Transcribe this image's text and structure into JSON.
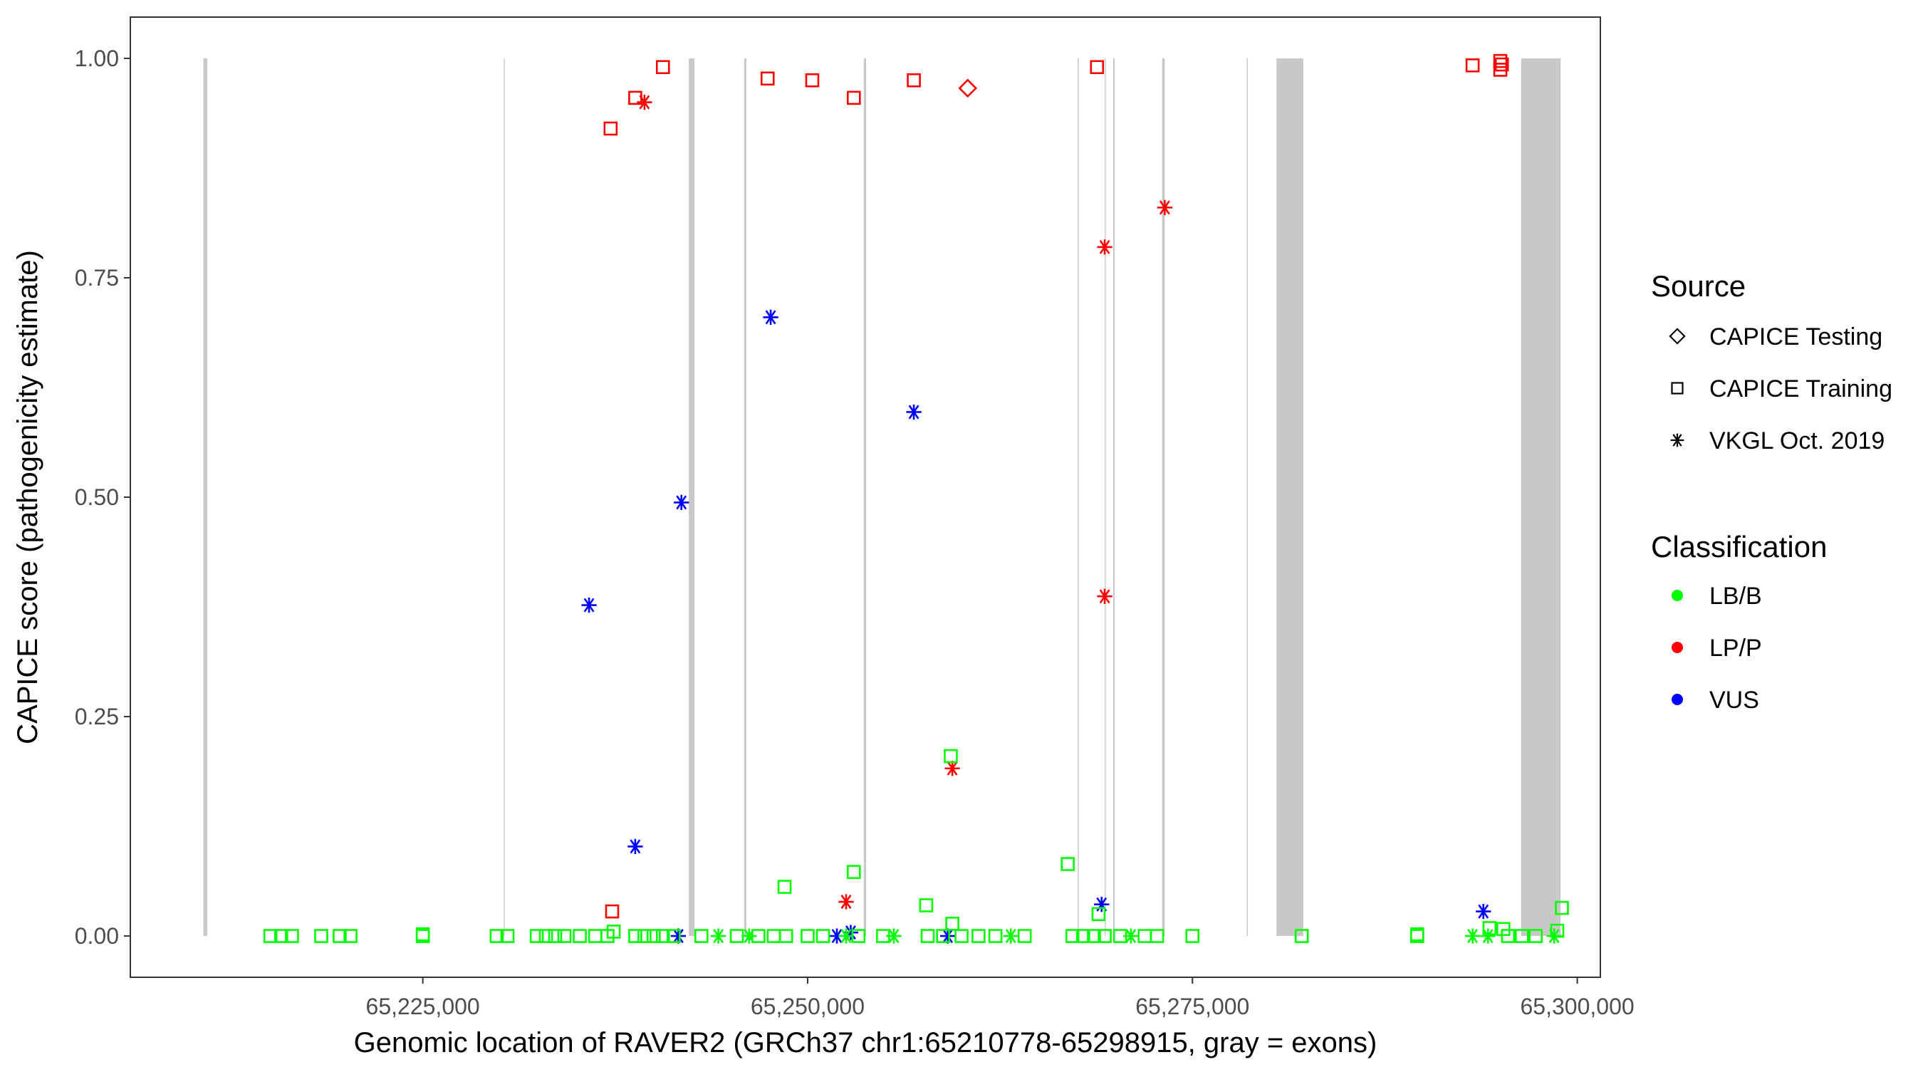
{
  "chart_data": {
    "type": "scatter",
    "xlabel": "Genomic location of RAVER2 (GRCh37 chr1:65210778-65298915, gray = exons)",
    "ylabel": "CAPICE score (pathogenicity estimate)",
    "xlim": [
      65206000,
      65301500
    ],
    "ylim": [
      -0.047,
      1.047
    ],
    "x_ticks": [
      65225000,
      65250000,
      65275000,
      65300000
    ],
    "x_tick_labels": [
      "65,225,000",
      "65,250,000",
      "65,275,000",
      "65,300,000"
    ],
    "y_ticks": [
      0,
      0.25,
      0.5,
      0.75,
      1
    ],
    "y_tick_labels": [
      "0.00",
      "0.25",
      "0.50",
      "0.75",
      "1.00"
    ],
    "grid": false,
    "exons_gray": [
      [
        65210750,
        65211000
      ],
      [
        65230260,
        65230310
      ],
      [
        65242280,
        65242650
      ],
      [
        65245880,
        65246020
      ],
      [
        65253650,
        65253800
      ],
      [
        65267540,
        65267620
      ],
      [
        65269300,
        65269350
      ],
      [
        65269850,
        65269950
      ],
      [
        65273030,
        65273200
      ],
      [
        65278530,
        65278600
      ],
      [
        65280460,
        65282200
      ],
      [
        65296350,
        65298920
      ]
    ],
    "legend_position": "right",
    "legend_source": {
      "title": "Source",
      "items": [
        {
          "label": "CAPICE Testing",
          "shape": "diamond"
        },
        {
          "label": "CAPICE Training",
          "shape": "square"
        },
        {
          "label": "VKGL Oct. 2019",
          "shape": "asterisk"
        }
      ]
    },
    "legend_class": {
      "title": "Classification",
      "items": [
        {
          "label": "LB/B",
          "color": "#00ff00"
        },
        {
          "label": "LP/P",
          "color": "#ff0000"
        },
        {
          "label": "VUS",
          "color": "#0000ff"
        }
      ]
    },
    "points": [
      {
        "x": 65237200,
        "y": 0.92,
        "shape": "square",
        "class": "LP/P"
      },
      {
        "x": 65238800,
        "y": 0.955,
        "shape": "square",
        "class": "LP/P"
      },
      {
        "x": 65240600,
        "y": 0.99,
        "shape": "square",
        "class": "LP/P"
      },
      {
        "x": 65239400,
        "y": 0.95,
        "shape": "asterisk",
        "class": "LP/P"
      },
      {
        "x": 65247400,
        "y": 0.977,
        "shape": "square",
        "class": "LP/P"
      },
      {
        "x": 65250300,
        "y": 0.975,
        "shape": "square",
        "class": "LP/P"
      },
      {
        "x": 65253000,
        "y": 0.955,
        "shape": "square",
        "class": "LP/P"
      },
      {
        "x": 65256900,
        "y": 0.975,
        "shape": "square",
        "class": "LP/P"
      },
      {
        "x": 65260400,
        "y": 0.966,
        "shape": "diamond",
        "class": "LP/P"
      },
      {
        "x": 65268800,
        "y": 0.99,
        "shape": "square",
        "class": "LP/P"
      },
      {
        "x": 65293200,
        "y": 0.992,
        "shape": "square",
        "class": "LP/P"
      },
      {
        "x": 65295000,
        "y": 0.997,
        "shape": "square",
        "class": "LP/P"
      },
      {
        "x": 65295100,
        "y": 0.993,
        "shape": "square",
        "class": "LP/P"
      },
      {
        "x": 65295000,
        "y": 0.987,
        "shape": "square",
        "class": "LP/P"
      },
      {
        "x": 65273200,
        "y": 0.83,
        "shape": "asterisk",
        "class": "LP/P"
      },
      {
        "x": 65269300,
        "y": 0.785,
        "shape": "asterisk",
        "class": "LP/P"
      },
      {
        "x": 65269300,
        "y": 0.387,
        "shape": "asterisk",
        "class": "LP/P"
      },
      {
        "x": 65259400,
        "y": 0.191,
        "shape": "asterisk",
        "class": "LP/P"
      },
      {
        "x": 65252500,
        "y": 0.039,
        "shape": "asterisk",
        "class": "LP/P"
      },
      {
        "x": 65237300,
        "y": 0.028,
        "shape": "square",
        "class": "LP/P"
      },
      {
        "x": 65247600,
        "y": 0.705,
        "shape": "asterisk",
        "class": "VUS"
      },
      {
        "x": 65256900,
        "y": 0.597,
        "shape": "asterisk",
        "class": "VUS"
      },
      {
        "x": 65241800,
        "y": 0.494,
        "shape": "asterisk",
        "class": "VUS"
      },
      {
        "x": 65235800,
        "y": 0.377,
        "shape": "asterisk",
        "class": "VUS"
      },
      {
        "x": 65238800,
        "y": 0.102,
        "shape": "asterisk",
        "class": "VUS"
      },
      {
        "x": 65269100,
        "y": 0.036,
        "shape": "asterisk",
        "class": "VUS"
      },
      {
        "x": 65293900,
        "y": 0.028,
        "shape": "asterisk",
        "class": "VUS"
      },
      {
        "x": 65241600,
        "y": 0.0,
        "shape": "asterisk",
        "class": "VUS"
      },
      {
        "x": 65251900,
        "y": 0.0,
        "shape": "asterisk",
        "class": "VUS"
      },
      {
        "x": 65252800,
        "y": 0.004,
        "shape": "asterisk",
        "class": "VUS"
      },
      {
        "x": 65259100,
        "y": 0.0,
        "shape": "asterisk",
        "class": "VUS"
      },
      {
        "x": 65259300,
        "y": 0.205,
        "shape": "square",
        "class": "LB/B"
      },
      {
        "x": 65266900,
        "y": 0.082,
        "shape": "square",
        "class": "LB/B"
      },
      {
        "x": 65253000,
        "y": 0.073,
        "shape": "square",
        "class": "LB/B"
      },
      {
        "x": 65248500,
        "y": 0.056,
        "shape": "square",
        "class": "LB/B"
      },
      {
        "x": 65257700,
        "y": 0.035,
        "shape": "square",
        "class": "LB/B"
      },
      {
        "x": 65299000,
        "y": 0.032,
        "shape": "square",
        "class": "LB/B"
      },
      {
        "x": 65268900,
        "y": 0.025,
        "shape": "square",
        "class": "LB/B"
      },
      {
        "x": 65259400,
        "y": 0.014,
        "shape": "square",
        "class": "LB/B"
      },
      {
        "x": 65294300,
        "y": 0.009,
        "shape": "square",
        "class": "LB/B"
      },
      {
        "x": 65295200,
        "y": 0.008,
        "shape": "square",
        "class": "LB/B"
      },
      {
        "x": 65298700,
        "y": 0.006,
        "shape": "square",
        "class": "LB/B"
      },
      {
        "x": 65237400,
        "y": 0.005,
        "shape": "square",
        "class": "LB/B"
      },
      {
        "x": 65215100,
        "y": 0.0,
        "shape": "square",
        "class": "LB/B"
      },
      {
        "x": 65215800,
        "y": 0.0,
        "shape": "square",
        "class": "LB/B"
      },
      {
        "x": 65216500,
        "y": 0.0,
        "shape": "square",
        "class": "LB/B"
      },
      {
        "x": 65218400,
        "y": 0.0,
        "shape": "square",
        "class": "LB/B"
      },
      {
        "x": 65219600,
        "y": 0.0,
        "shape": "square",
        "class": "LB/B"
      },
      {
        "x": 65220300,
        "y": 0.0,
        "shape": "square",
        "class": "LB/B"
      },
      {
        "x": 65225000,
        "y": 0.002,
        "shape": "square",
        "class": "LB/B"
      },
      {
        "x": 65225000,
        "y": 0.0,
        "shape": "square",
        "class": "LB/B"
      },
      {
        "x": 65229800,
        "y": 0.0,
        "shape": "square",
        "class": "LB/B"
      },
      {
        "x": 65230500,
        "y": 0.0,
        "shape": "square",
        "class": "LB/B"
      },
      {
        "x": 65232400,
        "y": 0.0,
        "shape": "square",
        "class": "LB/B"
      },
      {
        "x": 65233000,
        "y": 0.0,
        "shape": "square",
        "class": "LB/B"
      },
      {
        "x": 65233600,
        "y": 0.0,
        "shape": "square",
        "class": "LB/B"
      },
      {
        "x": 65234200,
        "y": 0.0,
        "shape": "square",
        "class": "LB/B"
      },
      {
        "x": 65235200,
        "y": 0.0,
        "shape": "square",
        "class": "LB/B"
      },
      {
        "x": 65236200,
        "y": 0.0,
        "shape": "square",
        "class": "LB/B"
      },
      {
        "x": 65237000,
        "y": 0.0,
        "shape": "square",
        "class": "LB/B"
      },
      {
        "x": 65238800,
        "y": 0.0,
        "shape": "square",
        "class": "LB/B"
      },
      {
        "x": 65239400,
        "y": 0.0,
        "shape": "square",
        "class": "LB/B"
      },
      {
        "x": 65240000,
        "y": 0.0,
        "shape": "square",
        "class": "LB/B"
      },
      {
        "x": 65240600,
        "y": 0.0,
        "shape": "square",
        "class": "LB/B"
      },
      {
        "x": 65241300,
        "y": 0.0,
        "shape": "square",
        "class": "LB/B"
      },
      {
        "x": 65243100,
        "y": 0.0,
        "shape": "square",
        "class": "LB/B"
      },
      {
        "x": 65244200,
        "y": 0.0,
        "shape": "asterisk",
        "class": "LB/B"
      },
      {
        "x": 65245400,
        "y": 0.0,
        "shape": "square",
        "class": "LB/B"
      },
      {
        "x": 65246200,
        "y": 0.0,
        "shape": "asterisk",
        "class": "LB/B"
      },
      {
        "x": 65246800,
        "y": 0.0,
        "shape": "square",
        "class": "LB/B"
      },
      {
        "x": 65247800,
        "y": 0.0,
        "shape": "square",
        "class": "LB/B"
      },
      {
        "x": 65248600,
        "y": 0.0,
        "shape": "square",
        "class": "LB/B"
      },
      {
        "x": 65250000,
        "y": 0.0,
        "shape": "square",
        "class": "LB/B"
      },
      {
        "x": 65251000,
        "y": 0.0,
        "shape": "square",
        "class": "LB/B"
      },
      {
        "x": 65252500,
        "y": 0.0,
        "shape": "asterisk",
        "class": "LB/B"
      },
      {
        "x": 65253300,
        "y": 0.0,
        "shape": "square",
        "class": "LB/B"
      },
      {
        "x": 65254900,
        "y": 0.0,
        "shape": "square",
        "class": "LB/B"
      },
      {
        "x": 65255600,
        "y": 0.0,
        "shape": "asterisk",
        "class": "LB/B"
      },
      {
        "x": 65257800,
        "y": 0.0,
        "shape": "square",
        "class": "LB/B"
      },
      {
        "x": 65258800,
        "y": 0.0,
        "shape": "square",
        "class": "LB/B"
      },
      {
        "x": 65260000,
        "y": 0.0,
        "shape": "square",
        "class": "LB/B"
      },
      {
        "x": 65261100,
        "y": 0.0,
        "shape": "square",
        "class": "LB/B"
      },
      {
        "x": 65262200,
        "y": 0.0,
        "shape": "square",
        "class": "LB/B"
      },
      {
        "x": 65263200,
        "y": 0.0,
        "shape": "asterisk",
        "class": "LB/B"
      },
      {
        "x": 65264100,
        "y": 0.0,
        "shape": "square",
        "class": "LB/B"
      },
      {
        "x": 65267200,
        "y": 0.0,
        "shape": "square",
        "class": "LB/B"
      },
      {
        "x": 65267900,
        "y": 0.0,
        "shape": "square",
        "class": "LB/B"
      },
      {
        "x": 65268600,
        "y": 0.0,
        "shape": "square",
        "class": "LB/B"
      },
      {
        "x": 65269300,
        "y": 0.0,
        "shape": "square",
        "class": "LB/B"
      },
      {
        "x": 65270300,
        "y": 0.0,
        "shape": "square",
        "class": "LB/B"
      },
      {
        "x": 65271000,
        "y": 0.0,
        "shape": "asterisk",
        "class": "LB/B"
      },
      {
        "x": 65271900,
        "y": 0.0,
        "shape": "square",
        "class": "LB/B"
      },
      {
        "x": 65272700,
        "y": 0.0,
        "shape": "square",
        "class": "LB/B"
      },
      {
        "x": 65275000,
        "y": 0.0,
        "shape": "square",
        "class": "LB/B"
      },
      {
        "x": 65282100,
        "y": 0.0,
        "shape": "square",
        "class": "LB/B"
      },
      {
        "x": 65289600,
        "y": 0.002,
        "shape": "square",
        "class": "LB/B"
      },
      {
        "x": 65289600,
        "y": 0.0,
        "shape": "square",
        "class": "LB/B"
      },
      {
        "x": 65293200,
        "y": 0.0,
        "shape": "asterisk",
        "class": "LB/B"
      },
      {
        "x": 65294200,
        "y": 0.0,
        "shape": "asterisk",
        "class": "LB/B"
      },
      {
        "x": 65295500,
        "y": 0.0,
        "shape": "square",
        "class": "LB/B"
      },
      {
        "x": 65296400,
        "y": 0.0,
        "shape": "square",
        "class": "LB/B"
      },
      {
        "x": 65297300,
        "y": 0.0,
        "shape": "square",
        "class": "LB/B"
      },
      {
        "x": 65298500,
        "y": 0.0,
        "shape": "asterisk",
        "class": "LB/B"
      }
    ]
  }
}
